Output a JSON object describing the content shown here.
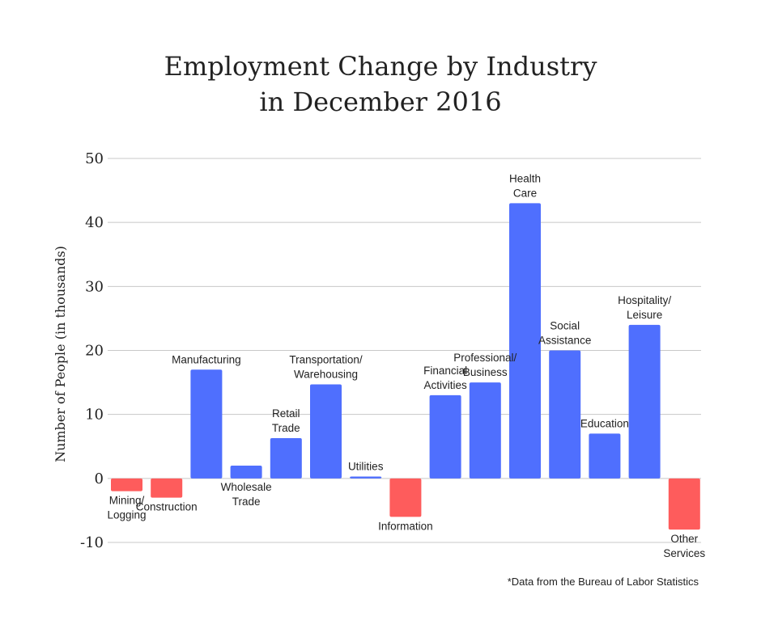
{
  "chart_data": {
    "type": "bar",
    "title_lines": [
      "Employment Change by Industry",
      "in December 2016"
    ],
    "ylabel": "Number of People (in thousands)",
    "xlabel": "",
    "ylim": [
      -10,
      50
    ],
    "yticks": [
      "50",
      "40",
      "30",
      "20",
      "10",
      "0",
      "-10"
    ],
    "grid": true,
    "categories": [
      [
        "Mining/",
        "Logging"
      ],
      [
        "Construction"
      ],
      [
        "Manufacturing"
      ],
      [
        "Wholesale",
        "Trade"
      ],
      [
        "Retail",
        "Trade"
      ],
      [
        "Transportation/",
        "Warehousing"
      ],
      [
        "Utilities"
      ],
      [
        "Information"
      ],
      [
        "Financial",
        "Activities"
      ],
      [
        "Professional/",
        "Business"
      ],
      [
        "Health",
        "Care"
      ],
      [
        "Social",
        "Assistance"
      ],
      [
        "Education"
      ],
      [
        "Hospitality/",
        "Leisure"
      ],
      [
        "Other",
        "Services"
      ]
    ],
    "values": [
      -2,
      -3,
      17,
      2,
      6.3,
      14.7,
      0.3,
      -6,
      13,
      15,
      43,
      20,
      7,
      24,
      -8
    ],
    "colors": {
      "positive": "#4f6ffe",
      "negative": "#fe5c5c"
    },
    "footnote": "*Data from the Bureau of Labor Statistics"
  }
}
